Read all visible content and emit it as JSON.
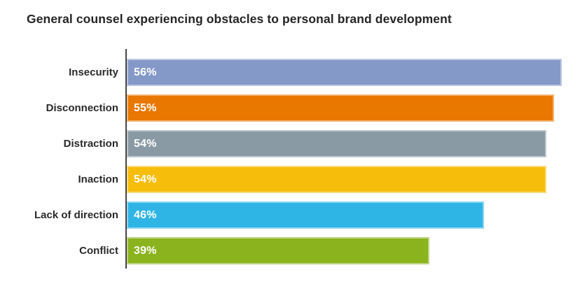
{
  "title": "General counsel experiencing obstacles to personal brand development",
  "chart_data": {
    "type": "bar",
    "orientation": "horizontal",
    "title": "General counsel experiencing obstacles to personal brand development",
    "categories": [
      "Insecurity",
      "Disconnection",
      "Distraction",
      "Inaction",
      "Lack of direction",
      "Conflict"
    ],
    "values": [
      56,
      55,
      54,
      54,
      46,
      39
    ],
    "value_labels": [
      "56%",
      "55%",
      "54%",
      "54%",
      "46%",
      "39%"
    ],
    "bar_colors": [
      "#8499C8",
      "#E97800",
      "#8A9AA4",
      "#F6BD0B",
      "#2FB4E6",
      "#8AB31E"
    ],
    "xlabel": "",
    "ylabel": "",
    "xlim": [
      0,
      59.25
    ],
    "grid": false,
    "legend": "none",
    "value_label_color": "#FFFFFF",
    "category_label_color": "#2B2A29",
    "axis_line_color": "#474545",
    "background_color": "#FFFFFF"
  }
}
